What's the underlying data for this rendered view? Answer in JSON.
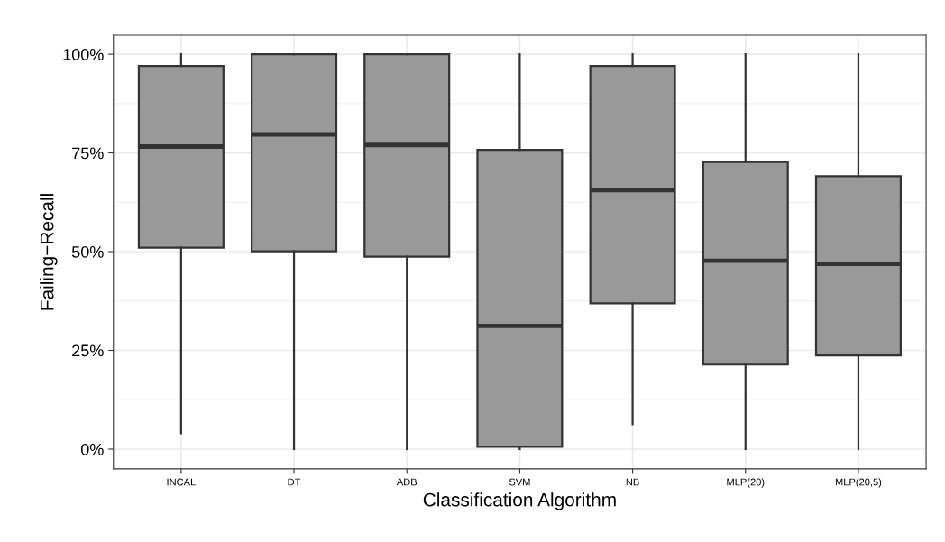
{
  "chart_data": {
    "type": "box",
    "xlabel": "Classification Algorithm",
    "ylabel": "Failing−Recall",
    "categories": [
      "INCAL",
      "DT",
      "ADB",
      "SVM",
      "NB",
      "MLP(20)",
      "MLP(20,5)"
    ],
    "color": "#999999",
    "boxes": [
      {
        "low": 4,
        "q1": 51,
        "median": 76.6,
        "q3": 97,
        "high": 100
      },
      {
        "low": 0,
        "q1": 50.1,
        "median": 79.7,
        "q3": 100,
        "high": 100
      },
      {
        "low": 0,
        "q1": 48.7,
        "median": 77,
        "q3": 100,
        "high": 100
      },
      {
        "low": 0,
        "q1": 0.6,
        "median": 31.2,
        "q3": 75.8,
        "high": 100
      },
      {
        "low": 6.3,
        "q1": 36.9,
        "median": 65.6,
        "q3": 97,
        "high": 100
      },
      {
        "low": 0,
        "q1": 21.4,
        "median": 47.7,
        "q3": 72.7,
        "high": 100
      },
      {
        "low": 0,
        "q1": 23.7,
        "median": 46.9,
        "q3": 69.1,
        "high": 100
      }
    ],
    "ylim": [
      -5,
      104.8
    ],
    "yticks": [
      {
        "value": 0,
        "label": "0%"
      },
      {
        "value": 25,
        "label": "25%"
      },
      {
        "value": 50,
        "label": "50%"
      },
      {
        "value": 75,
        "label": "75%"
      },
      {
        "value": 100,
        "label": "100%"
      }
    ],
    "grid": true
  }
}
